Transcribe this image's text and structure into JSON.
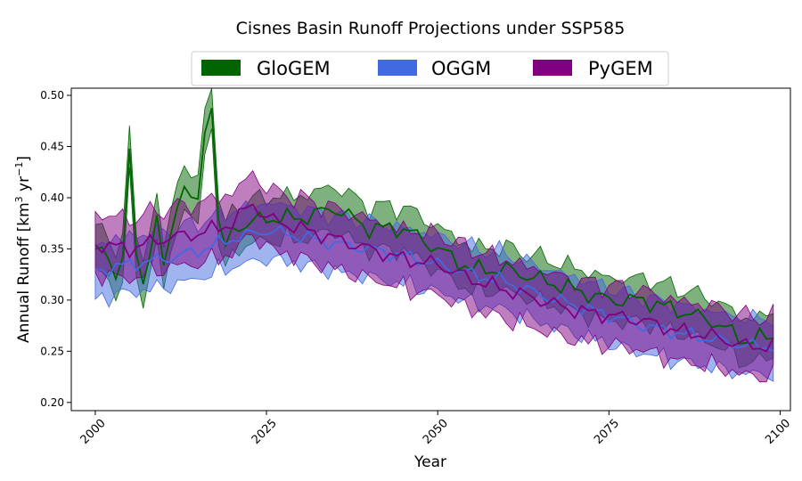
{
  "chart_data": {
    "type": "area",
    "title": "Cisnes Basin Runoff Projections under SSP585",
    "xlabel": "Year",
    "ylabel_parts": [
      "Annual Runoff [km",
      "3",
      " yr",
      "−1",
      "]"
    ],
    "xlim": [
      1996.5,
      2101.5
    ],
    "ylim": [
      0.192,
      0.507
    ],
    "xticks": [
      2000,
      2025,
      2050,
      2075,
      2100
    ],
    "xtick_labels": [
      "2000",
      "2025",
      "2050",
      "2075",
      "2100"
    ],
    "yticks": [
      0.2,
      0.25,
      0.3,
      0.35,
      0.4,
      0.45,
      0.5
    ],
    "ytick_labels": [
      "0.20",
      "0.25",
      "0.30",
      "0.35",
      "0.40",
      "0.45",
      "0.50"
    ],
    "grid": false,
    "legend_position": "top-center",
    "x_start": 2000,
    "x_end": 2099,
    "series": [
      {
        "name": "GloGEM",
        "color": "#006400",
        "anchors": [
          [
            2000,
            0.343
          ],
          [
            2001,
            0.35
          ],
          [
            2002,
            0.336
          ],
          [
            2003,
            0.33
          ],
          [
            2004,
            0.34
          ],
          [
            2005,
            0.445
          ],
          [
            2006,
            0.34
          ],
          [
            2007,
            0.32
          ],
          [
            2008,
            0.35
          ],
          [
            2009,
            0.38
          ],
          [
            2010,
            0.33
          ],
          [
            2011,
            0.36
          ],
          [
            2012,
            0.4
          ],
          [
            2013,
            0.41
          ],
          [
            2014,
            0.4
          ],
          [
            2015,
            0.39
          ],
          [
            2016,
            0.47
          ],
          [
            2017,
            0.49
          ],
          [
            2018,
            0.38
          ],
          [
            2019,
            0.345
          ],
          [
            2020,
            0.37
          ],
          [
            2025,
            0.38
          ],
          [
            2030,
            0.38
          ],
          [
            2035,
            0.39
          ],
          [
            2040,
            0.37
          ],
          [
            2045,
            0.37
          ],
          [
            2050,
            0.35
          ],
          [
            2055,
            0.33
          ],
          [
            2060,
            0.33
          ],
          [
            2065,
            0.32
          ],
          [
            2070,
            0.31
          ],
          [
            2075,
            0.3
          ],
          [
            2080,
            0.3
          ],
          [
            2085,
            0.29
          ],
          [
            2090,
            0.28
          ],
          [
            2095,
            0.26
          ],
          [
            2099,
            0.265
          ]
        ],
        "spread": 0.022,
        "wiggle": 0.02,
        "phase": 0.0
      },
      {
        "name": "OGGM",
        "color": "#4169E1",
        "anchors": [
          [
            2000,
            0.328
          ],
          [
            2005,
            0.335
          ],
          [
            2010,
            0.34
          ],
          [
            2015,
            0.348
          ],
          [
            2020,
            0.36
          ],
          [
            2025,
            0.368
          ],
          [
            2030,
            0.362
          ],
          [
            2035,
            0.355
          ],
          [
            2040,
            0.35
          ],
          [
            2045,
            0.343
          ],
          [
            2050,
            0.335
          ],
          [
            2055,
            0.325
          ],
          [
            2060,
            0.318
          ],
          [
            2065,
            0.305
          ],
          [
            2070,
            0.295
          ],
          [
            2075,
            0.285
          ],
          [
            2080,
            0.275
          ],
          [
            2085,
            0.268
          ],
          [
            2090,
            0.262
          ],
          [
            2095,
            0.255
          ],
          [
            2099,
            0.255
          ]
        ],
        "spread": 0.028,
        "wiggle": 0.016,
        "phase": 1.7
      },
      {
        "name": "PyGEM",
        "color": "#800080",
        "anchors": [
          [
            2000,
            0.355
          ],
          [
            2005,
            0.35
          ],
          [
            2010,
            0.36
          ],
          [
            2015,
            0.365
          ],
          [
            2020,
            0.375
          ],
          [
            2023,
            0.395
          ],
          [
            2025,
            0.38
          ],
          [
            2030,
            0.37
          ],
          [
            2035,
            0.36
          ],
          [
            2040,
            0.35
          ],
          [
            2045,
            0.34
          ],
          [
            2050,
            0.335
          ],
          [
            2055,
            0.32
          ],
          [
            2060,
            0.31
          ],
          [
            2065,
            0.3
          ],
          [
            2070,
            0.29
          ],
          [
            2075,
            0.285
          ],
          [
            2080,
            0.28
          ],
          [
            2085,
            0.27
          ],
          [
            2090,
            0.265
          ],
          [
            2095,
            0.255
          ],
          [
            2099,
            0.255
          ]
        ],
        "spread": 0.03,
        "wiggle": 0.018,
        "phase": 3.1
      }
    ]
  }
}
